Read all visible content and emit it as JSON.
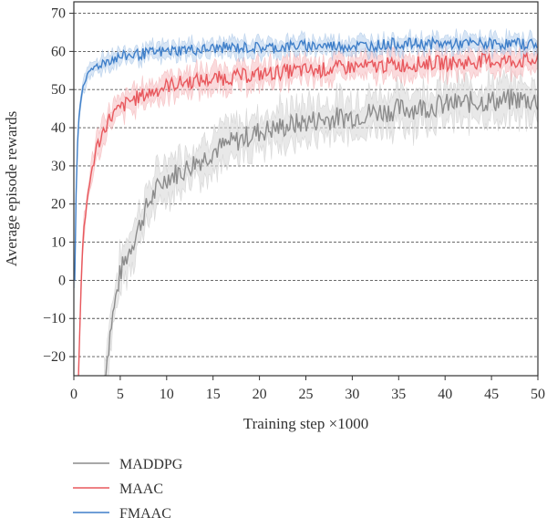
{
  "chart_data": {
    "type": "line",
    "xlabel": "Training step ×1000",
    "ylabel": "Average episode rewards",
    "xlim": [
      0,
      50
    ],
    "ylim": [
      -25,
      73
    ],
    "xticks": [
      0,
      5,
      10,
      15,
      20,
      25,
      30,
      35,
      40,
      45,
      50
    ],
    "yticks": [
      -20,
      -10,
      0,
      10,
      20,
      30,
      40,
      50,
      60,
      70
    ],
    "grid": "horizontal-dashed",
    "legend_position": "below",
    "series": [
      {
        "name": "MADDPG",
        "color": "#8c8c8c",
        "band_color": "#d9d9d9",
        "points": [
          [
            3.3,
            -25
          ],
          [
            3.6,
            -20
          ],
          [
            4.0,
            -12
          ],
          [
            4.5,
            -5
          ],
          [
            5.0,
            2
          ],
          [
            6.0,
            8
          ],
          [
            7.0,
            14
          ],
          [
            8.0,
            20
          ],
          [
            9.0,
            24
          ],
          [
            10.0,
            27
          ],
          [
            11.0,
            28
          ],
          [
            12.0,
            29
          ],
          [
            13.0,
            31
          ],
          [
            14.0,
            32
          ],
          [
            15.0,
            34
          ],
          [
            16.0,
            35
          ],
          [
            17.0,
            36
          ],
          [
            18.0,
            37
          ],
          [
            19.0,
            38
          ],
          [
            20.0,
            39
          ],
          [
            22.0,
            40
          ],
          [
            24.0,
            41
          ],
          [
            26.0,
            42
          ],
          [
            28.0,
            42.5
          ],
          [
            30.0,
            43
          ],
          [
            32.0,
            44
          ],
          [
            34.0,
            44.5
          ],
          [
            36.0,
            45
          ],
          [
            38.0,
            45.5
          ],
          [
            40.0,
            46
          ],
          [
            42.0,
            46.5
          ],
          [
            44.0,
            47
          ],
          [
            46.0,
            47
          ],
          [
            48.0,
            47.5
          ],
          [
            50.0,
            47
          ]
        ],
        "band": [
          5,
          3
        ]
      },
      {
        "name": "MAAC",
        "color": "#e8585d",
        "band_color": "#f6c2c4",
        "points": [
          [
            0.5,
            -25
          ],
          [
            0.8,
            0
          ],
          [
            1.0,
            12
          ],
          [
            1.5,
            22
          ],
          [
            2.0,
            30
          ],
          [
            2.5,
            35
          ],
          [
            3.0,
            38
          ],
          [
            3.5,
            41
          ],
          [
            4.0,
            43
          ],
          [
            5.0,
            45
          ],
          [
            6.0,
            47
          ],
          [
            7.0,
            48
          ],
          [
            8.0,
            49
          ],
          [
            9.0,
            50
          ],
          [
            10.0,
            51
          ],
          [
            12.0,
            52
          ],
          [
            14.0,
            52.5
          ],
          [
            16.0,
            53
          ],
          [
            18.0,
            53.5
          ],
          [
            20.0,
            54
          ],
          [
            22.0,
            54.5
          ],
          [
            24.0,
            55
          ],
          [
            26.0,
            55
          ],
          [
            28.0,
            55.5
          ],
          [
            30.0,
            56
          ],
          [
            32.0,
            56
          ],
          [
            34.0,
            56.5
          ],
          [
            36.0,
            56.5
          ],
          [
            38.0,
            57
          ],
          [
            40.0,
            57
          ],
          [
            42.0,
            57
          ],
          [
            44.0,
            57.5
          ],
          [
            46.0,
            57.5
          ],
          [
            48.0,
            57.5
          ],
          [
            50.0,
            57.5
          ]
        ],
        "band": [
          3,
          2
        ]
      },
      {
        "name": "FMAAC",
        "color": "#3f7fc9",
        "band_color": "#bcd3ef",
        "points": [
          [
            0.1,
            0
          ],
          [
            0.3,
            30
          ],
          [
            0.5,
            42
          ],
          [
            0.8,
            48
          ],
          [
            1.0,
            51
          ],
          [
            1.5,
            54
          ],
          [
            2.0,
            55.5
          ],
          [
            3.0,
            57
          ],
          [
            4.0,
            58
          ],
          [
            5.0,
            58.5
          ],
          [
            6.0,
            59
          ],
          [
            8.0,
            59.5
          ],
          [
            10.0,
            60
          ],
          [
            12.0,
            60.5
          ],
          [
            14.0,
            60.5
          ],
          [
            16.0,
            61
          ],
          [
            18.0,
            61
          ],
          [
            20.0,
            61
          ],
          [
            22.0,
            61
          ],
          [
            24.0,
            61.5
          ],
          [
            26.0,
            61.5
          ],
          [
            28.0,
            61.5
          ],
          [
            30.0,
            61.5
          ],
          [
            32.0,
            61.5
          ],
          [
            34.0,
            62
          ],
          [
            36.0,
            62
          ],
          [
            38.0,
            62
          ],
          [
            40.0,
            62
          ],
          [
            42.0,
            62
          ],
          [
            44.0,
            62
          ],
          [
            46.0,
            62
          ],
          [
            48.0,
            62
          ],
          [
            50.0,
            62
          ]
        ],
        "band": [
          2,
          1.5
        ]
      }
    ]
  }
}
